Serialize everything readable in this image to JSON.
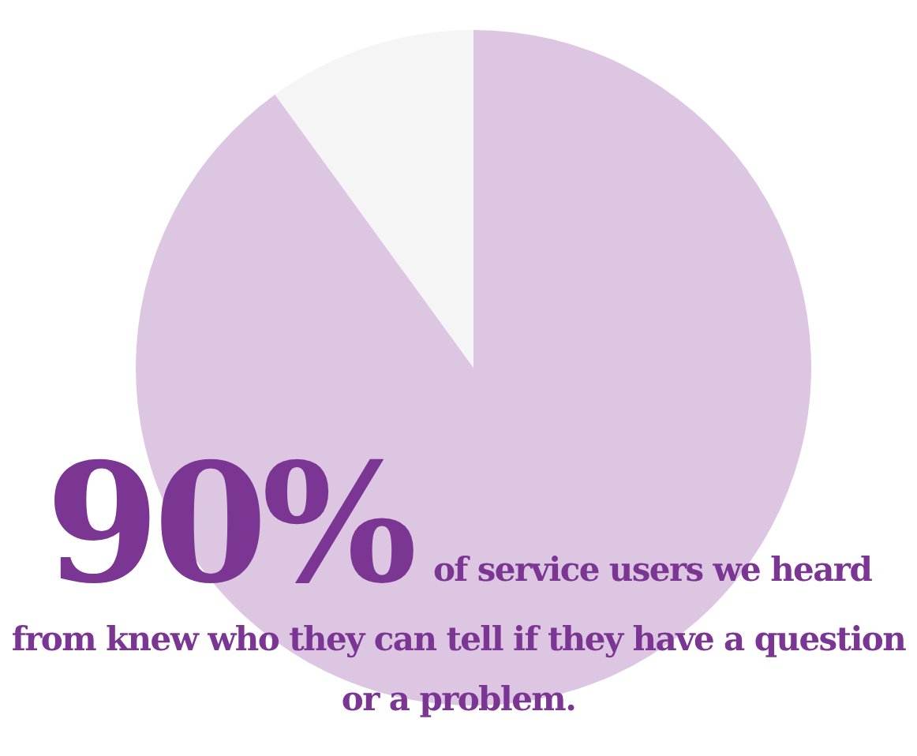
{
  "chart_data": {
    "type": "pie",
    "categories": [
      null,
      null
    ],
    "values": [
      90,
      10
    ],
    "colors": [
      "#dcc6e1",
      "#f5f5f5"
    ],
    "value_labels": [
      "90%",
      null
    ],
    "annotations": [
      "of service users we heard from knew who they can tell if they have a question or a problem."
    ]
  }
}
